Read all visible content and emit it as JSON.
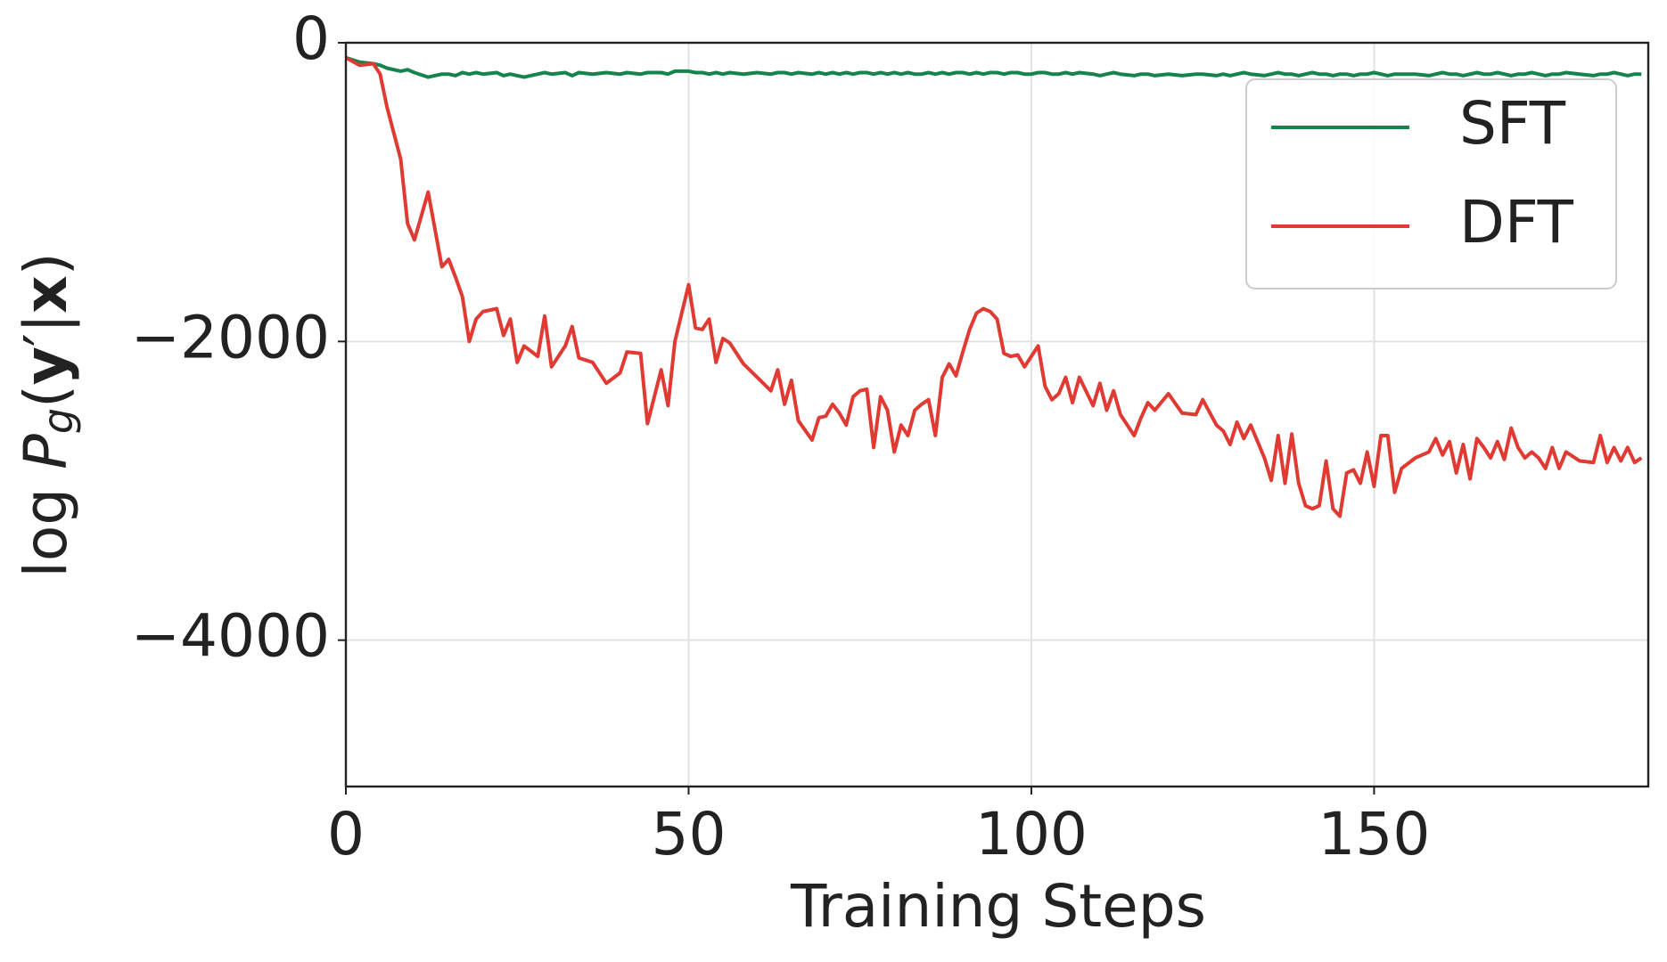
{
  "chart_data": {
    "type": "line",
    "xlabel": "Training Steps",
    "ylabel": [
      "log ",
      "P",
      "g",
      "(",
      "y",
      "′|",
      "x",
      ")"
    ],
    "xlim": [
      0,
      190
    ],
    "ylim": [
      -4980,
      0
    ],
    "xticks": [
      0,
      50,
      100,
      150
    ],
    "yticks": [
      0,
      {
        "value": -2000,
        "label": "−2000"
      },
      {
        "value": -4000,
        "label": "−4000"
      }
    ],
    "grid": true,
    "legend": "upper right",
    "x": [
      0,
      2,
      4,
      5,
      6,
      8,
      9,
      10,
      12,
      14,
      15,
      16,
      17,
      18,
      19,
      20,
      22,
      23,
      24,
      25,
      26,
      28,
      29,
      30,
      32,
      33,
      34,
      36,
      38,
      40,
      41,
      43,
      44,
      46,
      47,
      48,
      50,
      51,
      52,
      53,
      54,
      55,
      56,
      58,
      60,
      62,
      63,
      64,
      65,
      66,
      68,
      69,
      70,
      71,
      72,
      73,
      74,
      75,
      76,
      77,
      78,
      79,
      80,
      81,
      82,
      83,
      84,
      85,
      86,
      87,
      88,
      89,
      90,
      91,
      92,
      93,
      94,
      95,
      96,
      97,
      98,
      99,
      100,
      101,
      102,
      103,
      104,
      105,
      106,
      107,
      109,
      110,
      111,
      112,
      113,
      115,
      116,
      117,
      118,
      120,
      122,
      124,
      125,
      127,
      128,
      129,
      130,
      131,
      132,
      134,
      135,
      136,
      137,
      138,
      139,
      140,
      141,
      142,
      143,
      144,
      145,
      146,
      147,
      148,
      149,
      150,
      151,
      152,
      153,
      154,
      156,
      158,
      159,
      160,
      161,
      162,
      163,
      164,
      165,
      166,
      167,
      168,
      169,
      170,
      171,
      172,
      173,
      174,
      175,
      176,
      177,
      178,
      180,
      182,
      183,
      184,
      185,
      186,
      187,
      188,
      189
    ],
    "series": [
      {
        "name": "SFT",
        "color": "#15844c",
        "values": [
          -100,
          -130,
          -140,
          -150,
          -170,
          -190,
          -180,
          -200,
          -230,
          -210,
          -210,
          -220,
          -200,
          -210,
          -200,
          -210,
          -200,
          -220,
          -210,
          -220,
          -230,
          -210,
          -200,
          -210,
          -200,
          -220,
          -200,
          -210,
          -200,
          -210,
          -200,
          -210,
          -200,
          -200,
          -210,
          -190,
          -190,
          -200,
          -200,
          -210,
          -200,
          -210,
          -200,
          -210,
          -200,
          -210,
          -200,
          -200,
          -210,
          -200,
          -210,
          -200,
          -210,
          -200,
          -210,
          -200,
          -210,
          -200,
          -200,
          -210,
          -200,
          -210,
          -200,
          -210,
          -200,
          -210,
          -210,
          -200,
          -210,
          -200,
          -210,
          -200,
          -200,
          -210,
          -200,
          -210,
          -200,
          -200,
          -210,
          -200,
          -200,
          -210,
          -210,
          -200,
          -200,
          -210,
          -210,
          -200,
          -210,
          -200,
          -210,
          -220,
          -210,
          -200,
          -210,
          -220,
          -210,
          -210,
          -220,
          -210,
          -220,
          -210,
          -210,
          -220,
          -210,
          -220,
          -210,
          -200,
          -210,
          -220,
          -210,
          -200,
          -210,
          -210,
          -220,
          -210,
          -200,
          -210,
          -210,
          -220,
          -210,
          -210,
          -220,
          -210,
          -210,
          -200,
          -210,
          -220,
          -210,
          -210,
          -210,
          -220,
          -210,
          -200,
          -210,
          -210,
          -220,
          -210,
          -200,
          -210,
          -210,
          -200,
          -210,
          -220,
          -210,
          -210,
          -200,
          -210,
          -220,
          -210,
          -210,
          -200,
          -210,
          -220,
          -210,
          -210,
          -200,
          -210,
          -220,
          -210,
          -210
        ]
      },
      {
        "name": "DFT",
        "color": "#e03a33",
        "values": [
          -100,
          -150,
          -140,
          -210,
          -430,
          -780,
          -1210,
          -1320,
          -1000,
          -1500,
          -1450,
          -1570,
          -1700,
          -2000,
          -1850,
          -1800,
          -1780,
          -1960,
          -1850,
          -2140,
          -2030,
          -2100,
          -1830,
          -2170,
          -2030,
          -1900,
          -2110,
          -2140,
          -2280,
          -2210,
          -2070,
          -2080,
          -2550,
          -2190,
          -2430,
          -2000,
          -1620,
          -1910,
          -1920,
          -1850,
          -2140,
          -1980,
          -2010,
          -2150,
          -2240,
          -2330,
          -2190,
          -2420,
          -2260,
          -2530,
          -2660,
          -2510,
          -2500,
          -2420,
          -2480,
          -2560,
          -2370,
          -2330,
          -2320,
          -2710,
          -2370,
          -2460,
          -2740,
          -2560,
          -2630,
          -2460,
          -2420,
          -2390,
          -2630,
          -2240,
          -2150,
          -2230,
          -2070,
          -1920,
          -1810,
          -1780,
          -1800,
          -1850,
          -2080,
          -2100,
          -2090,
          -2170,
          -2100,
          -2030,
          -2300,
          -2390,
          -2350,
          -2240,
          -2410,
          -2240,
          -2430,
          -2280,
          -2460,
          -2330,
          -2490,
          -2630,
          -2510,
          -2410,
          -2460,
          -2350,
          -2480,
          -2490,
          -2390,
          -2560,
          -2600,
          -2690,
          -2540,
          -2650,
          -2560,
          -2780,
          -2930,
          -2630,
          -2950,
          -2620,
          -2950,
          -3100,
          -3120,
          -3100,
          -2800,
          -3120,
          -3170,
          -2880,
          -2860,
          -2950,
          -2740,
          -2970,
          -2630,
          -2630,
          -3010,
          -2850,
          -2780,
          -2740,
          -2650,
          -2760,
          -2670,
          -2880,
          -2690,
          -2920,
          -2650,
          -2710,
          -2780,
          -2670,
          -2790,
          -2580,
          -2710,
          -2780,
          -2740,
          -2780,
          -2850,
          -2710,
          -2850,
          -2740,
          -2800,
          -2810,
          -2630,
          -2810,
          -2710,
          -2800,
          -2710,
          -2810,
          -2780
        ]
      }
    ]
  }
}
